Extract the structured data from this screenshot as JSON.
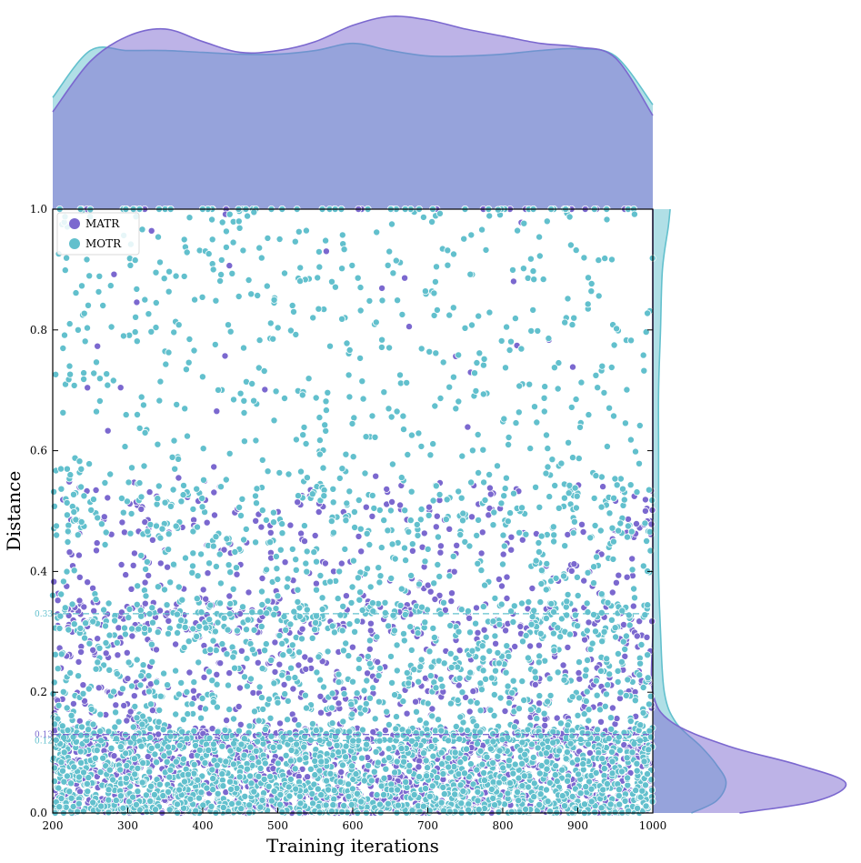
{
  "chart_data": {
    "type": "scatter",
    "xlabel": "Training iterations",
    "ylabel": "Distance",
    "xlim": [
      200,
      1000
    ],
    "ylim": [
      0.0,
      1.0
    ],
    "x_ticks": [
      "200",
      "300",
      "400",
      "500",
      "600",
      "700",
      "800",
      "900",
      "1000"
    ],
    "y_ticks": [
      "0.0",
      "0.2",
      "0.4",
      "0.6",
      "0.8",
      "1.0"
    ],
    "legend_position": "top-left",
    "grid": false,
    "series": [
      {
        "name": "MATR",
        "color": "#7b68cf",
        "approx_points": 2200
      },
      {
        "name": "MOTR",
        "color": "#62c0cd",
        "approx_points": 5200
      }
    ],
    "reference_lines": [
      {
        "series": "MOTR",
        "y": 0.33,
        "label": "0.33",
        "color": "#62c0cd"
      },
      {
        "series": "MATR",
        "y": 0.13,
        "label": "0.13",
        "color": "#7b68cf"
      },
      {
        "series": "MOTR",
        "y": 0.12,
        "label": "0.12",
        "color": "#62c0cd"
      }
    ],
    "marginal_x_kde": {
      "x": [
        200,
        250,
        300,
        350,
        400,
        450,
        500,
        550,
        600,
        650,
        700,
        750,
        800,
        850,
        900,
        950,
        1000
      ],
      "MATR": [
        0.54,
        0.82,
        0.96,
        1.0,
        0.93,
        0.87,
        0.88,
        0.93,
        1.02,
        1.07,
        1.05,
        1.0,
        0.96,
        0.92,
        0.9,
        0.84,
        0.52
      ],
      "MOTR": [
        0.62,
        0.88,
        0.88,
        0.88,
        0.87,
        0.86,
        0.86,
        0.88,
        0.92,
        0.88,
        0.85,
        0.85,
        0.86,
        0.88,
        0.89,
        0.85,
        0.58
      ]
    },
    "marginal_y_kde": {
      "y": [
        0.0,
        0.02,
        0.05,
        0.08,
        0.11,
        0.15,
        0.2,
        0.3,
        0.4,
        0.5,
        0.6,
        0.7,
        0.8,
        0.9,
        0.97,
        1.0
      ],
      "MATR": [
        0.45,
        0.85,
        1.0,
        0.75,
        0.4,
        0.1,
        0.0,
        0.0,
        0.0,
        0.0,
        0.0,
        0.0,
        0.0,
        0.0,
        0.0,
        0.0
      ],
      "MOTR": [
        0.2,
        0.33,
        0.38,
        0.33,
        0.25,
        0.12,
        0.06,
        0.04,
        0.03,
        0.03,
        0.03,
        0.03,
        0.04,
        0.05,
        0.08,
        0.09
      ]
    },
    "colors": {
      "MATR": "#7b68cf",
      "MOTR": "#62c0cd",
      "overlap": "#9aa7da"
    }
  }
}
